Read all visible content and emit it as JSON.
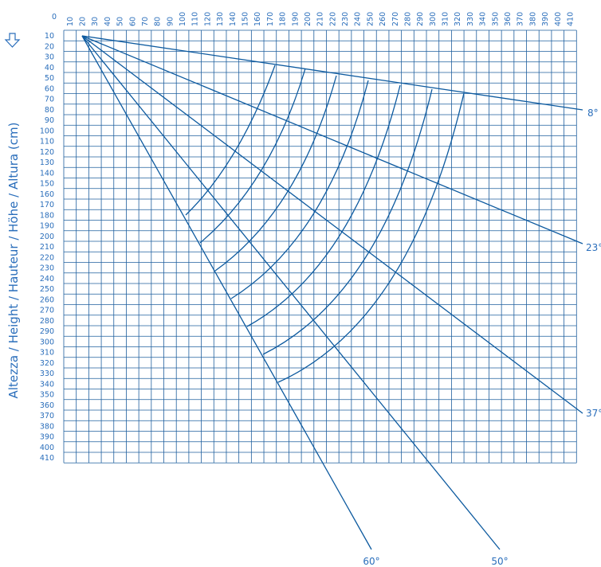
{
  "colors": {
    "grid": "#1f5f9e",
    "line": "#0d5a9f",
    "text": "#2a6ebb"
  },
  "axis_origin_label": "0",
  "y_axis_title": "Altezza / Height / Hauteur / Höhe / Altura (cm)",
  "down_arrow_icon": "down-arrow-icon",
  "chart_data": {
    "type": "diagram",
    "x_ticks": [
      "10",
      "20",
      "30",
      "40",
      "50",
      "60",
      "70",
      "80",
      "90",
      "100",
      "110",
      "120",
      "130",
      "140",
      "150",
      "160",
      "170",
      "180",
      "190",
      "200",
      "210",
      "220",
      "230",
      "240",
      "250",
      "260",
      "270",
      "280",
      "290",
      "300",
      "310",
      "320",
      "330",
      "340",
      "350",
      "360",
      "370",
      "380",
      "390",
      "400",
      "410"
    ],
    "y_ticks": [
      "10",
      "20",
      "30",
      "40",
      "50",
      "60",
      "70",
      "80",
      "90",
      "100",
      "110",
      "120",
      "130",
      "140",
      "150",
      "160",
      "170",
      "180",
      "190",
      "200",
      "210",
      "220",
      "230",
      "240",
      "250",
      "260",
      "270",
      "280",
      "290",
      "300",
      "310",
      "320",
      "330",
      "340",
      "350",
      "360",
      "370",
      "380",
      "390",
      "400",
      "410"
    ],
    "angle_labels": [
      "8°",
      "23°",
      "37°",
      "60°",
      "50°"
    ]
  }
}
